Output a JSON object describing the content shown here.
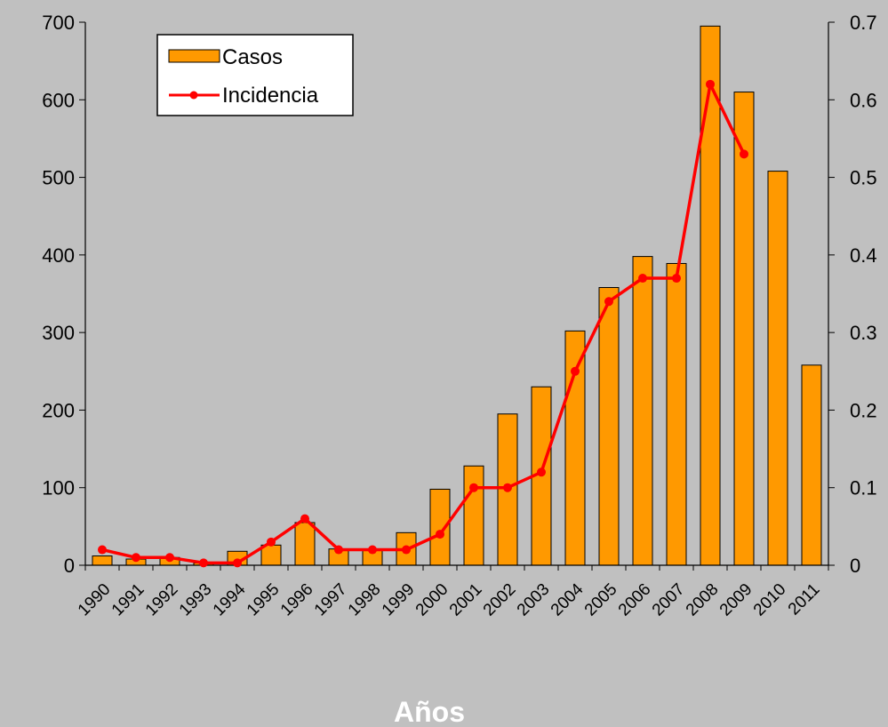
{
  "chart_data": {
    "type": "bar",
    "categories": [
      "1990",
      "1991",
      "1992",
      "1993",
      "1994",
      "1995",
      "1996",
      "1997",
      "1998",
      "1999",
      "2000",
      "2001",
      "2002",
      "2003",
      "2004",
      "2005",
      "2006",
      "2007",
      "2008",
      "2009",
      "2010",
      "2011"
    ],
    "series": [
      {
        "name": "Casos",
        "type": "bar",
        "axis": "left",
        "color": "#ff9900",
        "values": [
          12,
          8,
          10,
          3,
          18,
          26,
          55,
          21,
          20,
          42,
          98,
          128,
          195,
          230,
          302,
          358,
          398,
          389,
          695,
          610,
          508,
          258
        ]
      },
      {
        "name": "Incidencia",
        "type": "line",
        "axis": "right",
        "color": "#ff0000",
        "values": [
          0.02,
          0.01,
          0.01,
          0.003,
          0.003,
          0.03,
          0.06,
          0.02,
          0.02,
          0.02,
          0.04,
          0.1,
          0.1,
          0.12,
          0.25,
          0.34,
          0.37,
          0.37,
          0.62,
          0.53,
          null,
          null
        ]
      }
    ],
    "xlabel": "Años",
    "ylim_left": [
      0,
      700
    ],
    "yticks_left": [
      0,
      100,
      200,
      300,
      400,
      500,
      600,
      700
    ],
    "ylim_right": [
      0,
      0.7
    ],
    "yticks_right": [
      "0",
      "0.1",
      "0.2",
      "0.3",
      "0.4",
      "0.5",
      "0.6",
      "0.7"
    ],
    "grid": false,
    "legend_position": "top-left"
  }
}
